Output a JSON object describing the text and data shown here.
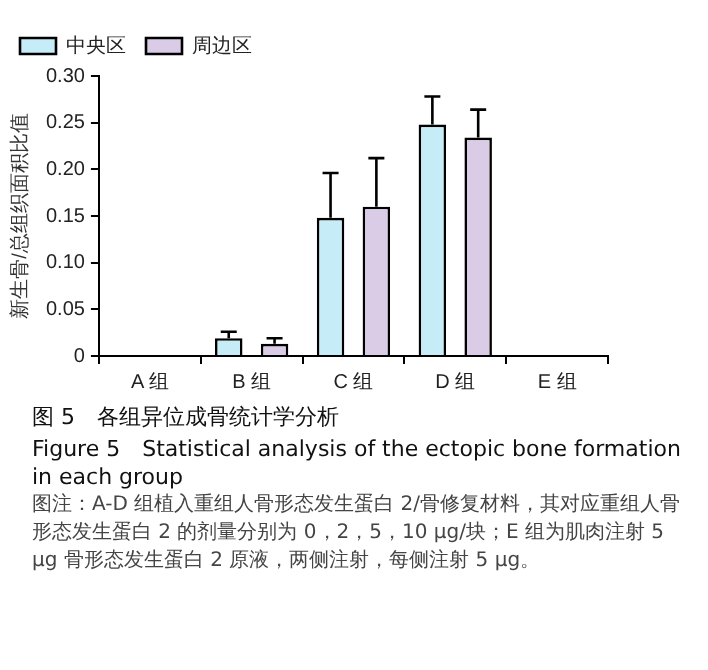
{
  "chart_data": {
    "type": "bar",
    "title": "图 5　各组异位成骨统计学分析",
    "subtitle": "Figure 5　Statistical analysis of the ectopic bone formation in each group",
    "ylabel": "新生骨/总组织面积比值",
    "annotations": [
      "图注：A-D 组植入重组人骨形态发生蛋白 2/骨修复材料，其对应重组人骨形态发生蛋白 2 的剂量分别为 0，2，5，10 μg/块；E 组为肌肉注射 5 μg  骨形态发生蛋白 2 原液，两侧注射，每侧注射 5 μg。"
    ],
    "categories": [
      "A 组",
      "B 组",
      "C 组",
      "D 组",
      "E 组"
    ],
    "series": [
      {
        "name": "中央区",
        "color": "#c6ecf8",
        "values": [
          0,
          0.019,
          0.148,
          0.248,
          0
        ],
        "errors": [
          null,
          [
            0.019,
            0.026
          ],
          [
            0.148,
            0.196
          ],
          [
            0.248,
            0.278
          ],
          null
        ]
      },
      {
        "name": "周边区",
        "color": "#dacbe6",
        "values": [
          0,
          0.013,
          0.16,
          0.234,
          0
        ],
        "errors": [
          null,
          [
            0.013,
            0.019
          ],
          [
            0.16,
            0.212
          ],
          [
            0.234,
            0.264
          ],
          null
        ]
      }
    ],
    "ylim": [
      0,
      0.3
    ],
    "yticks": [
      {
        "value": 0,
        "label": "0"
      },
      0.05,
      {
        "value": 0.1,
        "label": "0.10"
      },
      0.15,
      {
        "value": 0.2,
        "label": "0.20"
      },
      0.25,
      {
        "value": 0.3,
        "label": "0.30"
      }
    ],
    "grid": false,
    "legend": "top left"
  }
}
